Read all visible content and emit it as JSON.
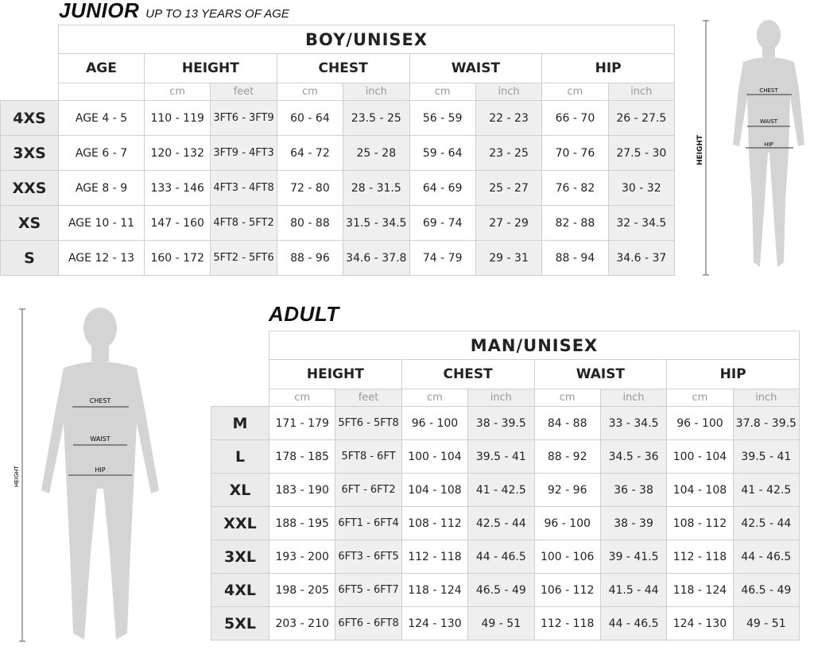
{
  "junior": {
    "title": "JUNIOR",
    "subtitle": "UP TO 13 YEARS OF AGE",
    "table_title": "BOY/UNISEX",
    "headers": [
      "AGE",
      "HEIGHT",
      "CHEST",
      "WAIST",
      "HIP"
    ],
    "units": [
      "cm",
      "feet",
      "cm",
      "inch",
      "cm",
      "inch",
      "cm",
      "inch"
    ],
    "rows": [
      {
        "size": "4XS",
        "cells": [
          "AGE 4 - 5",
          "110 - 119",
          "3FT6 - 3FT9",
          "60 - 64",
          "23.5 - 25",
          "56 - 59",
          "22 - 23",
          "66 - 70",
          "26 - 27.5"
        ]
      },
      {
        "size": "3XS",
        "cells": [
          "AGE 6 - 7",
          "120 - 132",
          "3FT9 - 4FT3",
          "64 - 72",
          "25 - 28",
          "59 - 64",
          "23 - 25",
          "70 - 76",
          "27.5 - 30"
        ]
      },
      {
        "size": "XXS",
        "cells": [
          "AGE 8 - 9",
          "133 - 146",
          "4FT3 - 4FT8",
          "72 - 80",
          "28 - 31.5",
          "64 - 69",
          "25 - 27",
          "76 - 82",
          "30 - 32"
        ]
      },
      {
        "size": "XS",
        "cells": [
          "AGE 10 - 11",
          "147 - 160",
          "4FT8 - 5FT2",
          "80 - 88",
          "31.5 - 34.5",
          "69 - 74",
          "27 - 29",
          "82 - 88",
          "32 - 34.5"
        ]
      },
      {
        "size": "S",
        "cells": [
          "AGE 12 - 13",
          "160 - 172",
          "5FT2 - 5FT6",
          "88 - 96",
          "34.6 - 37.8",
          "74 - 79",
          "29 - 31",
          "88 - 94",
          "34.6 - 37"
        ]
      }
    ],
    "figure_labels": {
      "chest": "CHEST",
      "waist": "WAIST",
      "hip": "HIP",
      "height": "HEIGHT"
    }
  },
  "adult": {
    "title": "ADULT",
    "table_title": "MAN/UNISEX",
    "headers": [
      "HEIGHT",
      "CHEST",
      "WAIST",
      "HIP"
    ],
    "units": [
      "cm",
      "feet",
      "cm",
      "inch",
      "cm",
      "inch",
      "cm",
      "inch"
    ],
    "rows": [
      {
        "size": "M",
        "cells": [
          "171 - 179",
          "5FT6 - 5FT8",
          "96 - 100",
          "38 - 39.5",
          "84 - 88",
          "33 - 34.5",
          "96 - 100",
          "37.8 - 39.5"
        ]
      },
      {
        "size": "L",
        "cells": [
          "178 - 185",
          "5FT8 - 6FT",
          "100 - 104",
          "39.5 - 41",
          "88 - 92",
          "34.5 - 36",
          "100 - 104",
          "39.5 - 41"
        ]
      },
      {
        "size": "XL",
        "cells": [
          "183 - 190",
          "6FT - 6FT2",
          "104 - 108",
          "41 - 42.5",
          "92 - 96",
          "36 - 38",
          "104 - 108",
          "41 - 42.5"
        ]
      },
      {
        "size": "XXL",
        "cells": [
          "188 - 195",
          "6FT1 - 6FT4",
          "108 - 112",
          "42.5 - 44",
          "96 - 100",
          "38 - 39",
          "108 - 112",
          "42.5 - 44"
        ]
      },
      {
        "size": "3XL",
        "cells": [
          "193 - 200",
          "6FT3 - 6FT5",
          "112 - 118",
          "44 - 46.5",
          "100 - 106",
          "39 - 41.5",
          "112 - 118",
          "44 - 46.5"
        ]
      },
      {
        "size": "4XL",
        "cells": [
          "198 - 205",
          "6FT5 - 6FT7",
          "118 - 124",
          "46.5 - 49",
          "106 - 112",
          "41.5 - 44",
          "118 - 124",
          "46.5 - 49"
        ]
      },
      {
        "size": "5XL",
        "cells": [
          "203 - 210",
          "6FT6 - 6FT8",
          "124 - 130",
          "49 - 51",
          "112 - 118",
          "44 - 46.5",
          "124 - 130",
          "49 - 51"
        ]
      }
    ],
    "figure_labels": {
      "chest": "CHEST",
      "waist": "WAIST",
      "hip": "HIP",
      "height": "HEIGHT"
    }
  },
  "colors": {
    "size_cell": "#ebebeb",
    "alt_column": "#efefef",
    "figure": "#d4d4d4",
    "border": "#cfcfcf"
  }
}
